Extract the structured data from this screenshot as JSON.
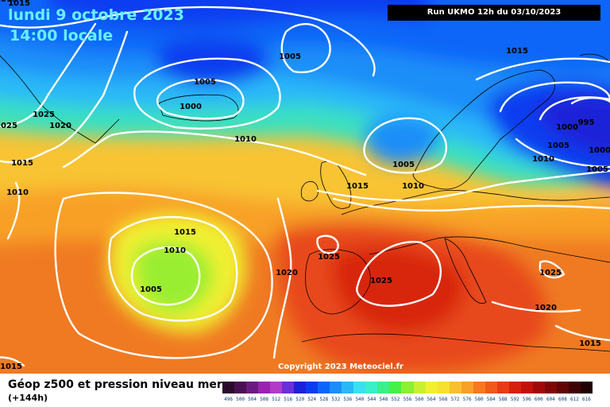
{
  "header": {
    "date": "lundi 9 octobre 2023",
    "time": "14:00 locale",
    "run": "Run UKMO 12h du 03/10/2023"
  },
  "copyright": "Copyright 2023 Meteociel.fr",
  "footer": {
    "parameter": "Géop z500 et pression niveau mer",
    "lead_time": "(+144h)"
  },
  "isobar_labels": [
    "1015",
    "1005",
    "1005",
    "1000",
    "1025",
    "1020",
    "1025",
    "1015",
    "1010",
    "1010",
    "1015",
    "1015",
    "1010",
    "1005",
    "1020",
    "1025",
    "1025",
    "1025",
    "1020",
    "1015",
    "1015",
    "1005",
    "1010",
    "1015",
    "1000",
    "995",
    "1005",
    "1000",
    "1010",
    "1005",
    "1015"
  ],
  "legend": {
    "values": [
      496,
      500,
      504,
      508,
      512,
      516,
      520,
      524,
      528,
      532,
      536,
      540,
      544,
      548,
      552,
      556,
      560,
      564,
      568,
      572,
      576,
      580,
      584,
      588,
      592,
      596,
      600,
      604,
      608,
      612,
      616
    ],
    "colors": [
      "#2a0a2a",
      "#4a0f52",
      "#6a1a80",
      "#9a22b0",
      "#b03cc8",
      "#6a2fd8",
      "#1a22d8",
      "#0a3cf0",
      "#0a66f8",
      "#1a8ef8",
      "#2ab8f8",
      "#3ae0f0",
      "#3af0c8",
      "#3af08a",
      "#46f046",
      "#8af030",
      "#c8f030",
      "#f0f030",
      "#f8e030",
      "#f8c030",
      "#f8a028",
      "#f87820",
      "#f05a1a",
      "#e83a14",
      "#d8200e",
      "#c0100a",
      "#a00808",
      "#800606",
      "#600404",
      "#400202",
      "#200101"
    ]
  },
  "colors": {
    "header_text": "#66f0ff",
    "isobar": "#ffffff",
    "coastline": "#000000"
  }
}
